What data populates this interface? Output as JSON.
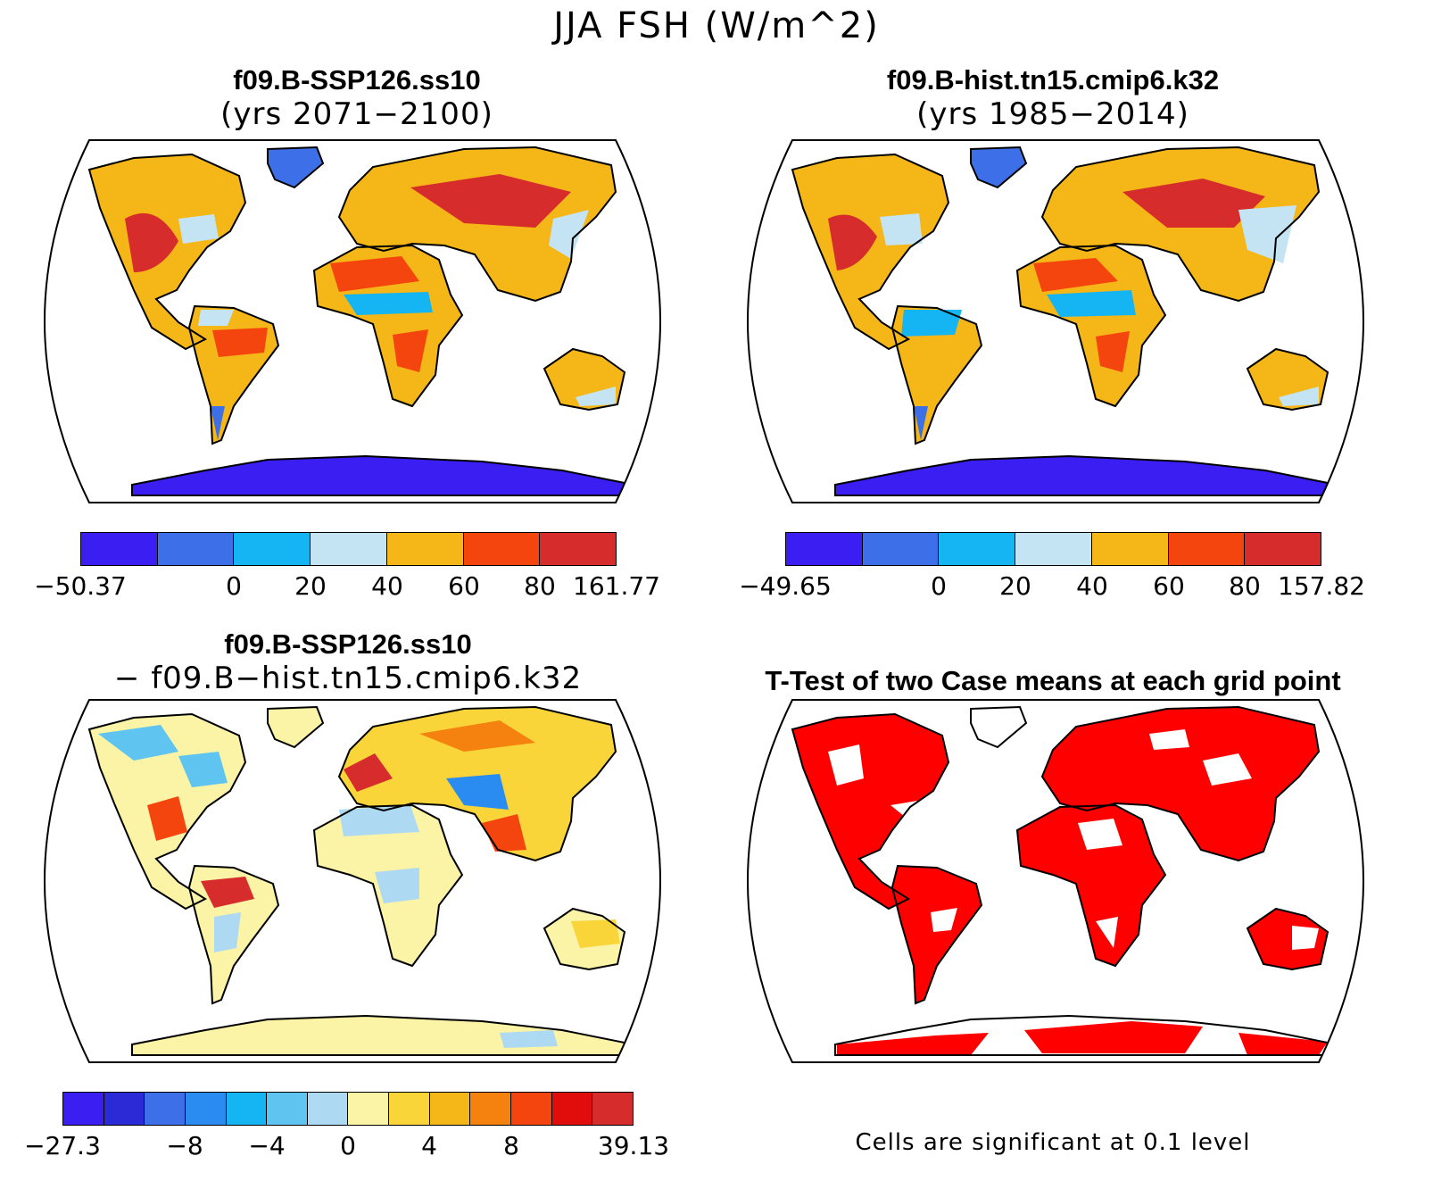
{
  "title": "JJA FSH (W/m^2)",
  "panels": [
    {
      "id": "future",
      "title": "f09.B-SSP126.ss10",
      "subtitle": "(yrs 2071−2100)",
      "colorbar": {
        "colors": [
          "#3a1ef2",
          "#3c6fe8",
          "#14b5f2",
          "#c4e4f3",
          "#f5b617",
          "#f5450f",
          "#d62c2c"
        ],
        "labels": [
          "−50.37",
          "0",
          "20",
          "40",
          "60",
          "80",
          "161.77"
        ]
      }
    },
    {
      "id": "historical",
      "title": "f09.B-hist.tn15.cmip6.k32",
      "subtitle": "(yrs 1985−2014)",
      "colorbar": {
        "colors": [
          "#3a1ef2",
          "#3c6fe8",
          "#14b5f2",
          "#c4e4f3",
          "#f5b617",
          "#f5450f",
          "#d62c2c"
        ],
        "labels": [
          "−49.65",
          "0",
          "20",
          "40",
          "60",
          "80",
          "157.82"
        ]
      }
    },
    {
      "id": "difference",
      "title": "f09.B-SSP126.ss10",
      "subtitle": "− f09.B−hist.tn15.cmip6.k32",
      "colorbar": {
        "colors": [
          "#3a1ef2",
          "#2a2ad6",
          "#3c6fe8",
          "#2a8cf0",
          "#14b5f2",
          "#5fc4f0",
          "#aed9f2",
          "#fbf3a5",
          "#f9d53a",
          "#f5b617",
          "#f5820f",
          "#f5450f",
          "#e10d0d",
          "#d62c2c"
        ],
        "labels": [
          "−27.3",
          "−8",
          "−4",
          "0",
          "4",
          "8",
          "39.13"
        ]
      }
    },
    {
      "id": "ttest",
      "title": "T-Test of two Case means at each grid point",
      "footnote": "Cells are significant at 0.1 level",
      "sig_color": "#ff0000"
    }
  ]
}
